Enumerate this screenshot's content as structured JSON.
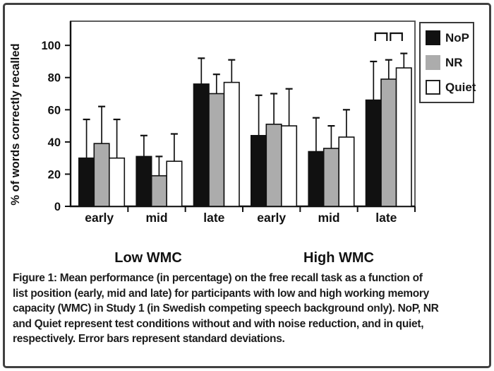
{
  "figure": {
    "caption_lines": [
      "Figure 1: Mean performance (in percentage) on the free recall task as a function of",
      "list position (early, mid and late) for participants with low and high working memory",
      "capacity (WMC) in Study 1 (in Swedish competing speech background only). NoP, NR",
      "and Quiet represent test conditions without and with noise reduction, and in quiet,",
      "respectively. Error bars represent standard deviations."
    ]
  },
  "legend": {
    "items": [
      {
        "label": "NoP",
        "color": "#111111",
        "border_color": "#111111"
      },
      {
        "label": "NR",
        "color": "#acacac",
        "border_color": "#acacac"
      },
      {
        "label": "Quiet",
        "color": "#ffffff",
        "border_color": "#222222"
      }
    ]
  },
  "chart_data": {
    "type": "bar",
    "title": "",
    "ylabel": "% of words correctly recalled",
    "xlabel": "",
    "yticks": [
      0,
      20,
      40,
      60,
      80,
      100
    ],
    "ylim": [
      0,
      115
    ],
    "grid": false,
    "legend_position": "top-right-outside",
    "groups": [
      {
        "label": "Low WMC"
      },
      {
        "label": "High WMC"
      }
    ],
    "categories": [
      "early",
      "mid",
      "late",
      "early",
      "mid",
      "late"
    ],
    "series": [
      {
        "name": "NoP",
        "color": "#111111",
        "values": [
          30,
          31,
          76,
          44,
          34,
          66
        ],
        "error_tops": [
          54,
          44,
          92,
          69,
          55,
          90
        ]
      },
      {
        "name": "NR",
        "color": "#acacac",
        "values": [
          39,
          19,
          70,
          51,
          36,
          79
        ],
        "error_tops": [
          62,
          31,
          82,
          70,
          50,
          91
        ]
      },
      {
        "name": "Quiet",
        "color": "#ffffff",
        "values": [
          30,
          28,
          77,
          50,
          43,
          86
        ],
        "error_tops": [
          54,
          45,
          91,
          73,
          60,
          95
        ]
      }
    ],
    "sig_brackets": [
      {
        "group_index": 5,
        "between": [
          0,
          1
        ]
      },
      {
        "group_index": 5,
        "between": [
          1,
          2
        ]
      }
    ],
    "error_bar_note": "upper whiskers only, capped"
  }
}
